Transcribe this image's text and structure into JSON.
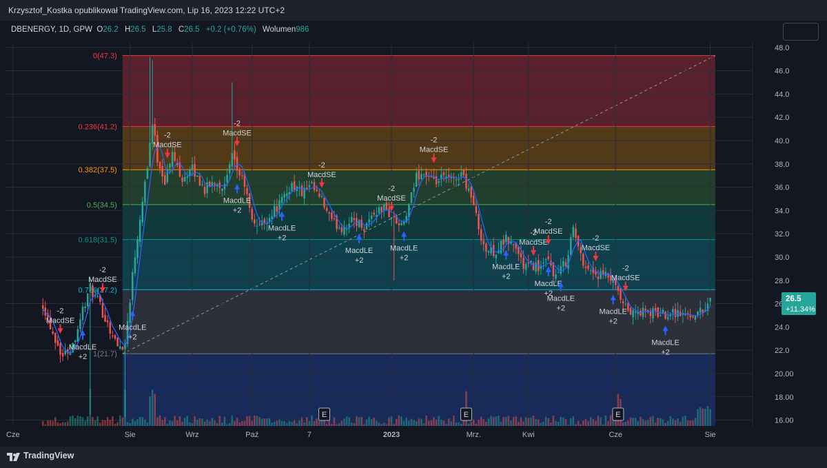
{
  "header": {
    "publisher": "Krzysztof_Kostka opublikował TradingView.com, Lip 16, 2023 12:22 UTC+2"
  },
  "legend": {
    "symbol": "DBENERGY, 1D, GPW",
    "open_label": "O",
    "open_value": "26.2",
    "high_label": "H",
    "high_value": "26.5",
    "low_label": "L",
    "low_value": "25.8",
    "close_label": "C",
    "close_value": "26.5",
    "change": "+0.2 (+0.76%)",
    "volume_label": "Wolumen",
    "volume_value": "986"
  },
  "price_tag": {
    "price": "26.5",
    "change": "+11.34%"
  },
  "footer": {
    "brand": "TradingView"
  },
  "colors": {
    "up": "#26a69a",
    "down": "#ef5350",
    "ma": "#2962ff",
    "buy_arrow": "#2962ff",
    "sell_arrow": "#f23645",
    "price_tag": "#26a69a"
  },
  "chart_data": {
    "type": "candlestick",
    "ylim": [
      15.5,
      48.4
    ],
    "y_ticks": [
      "48.0",
      "46.0",
      "44.0",
      "42.0",
      "40.0",
      "38.0",
      "36.0",
      "34.0",
      "32.0",
      "30.0",
      "28.0",
      "26.0",
      "24.0",
      "22.0",
      "20.00",
      "18.00",
      "16.00"
    ],
    "y_tick_values": [
      48,
      46,
      44,
      42,
      40,
      38,
      36,
      34,
      32,
      30,
      28,
      26,
      24,
      22,
      20,
      18,
      16
    ],
    "x_ticks": [
      "Cze",
      "Sie",
      "Wrz",
      "Paź",
      "7",
      "2023",
      "Mrz.",
      "Kwi",
      "Cze",
      "Sie"
    ],
    "x_tick_index": [
      -12,
      35,
      60,
      84,
      107,
      140,
      173,
      195,
      230,
      268
    ],
    "fib_levels": [
      {
        "label": "0(47.3)",
        "value": 47.3,
        "color": "#f23645"
      },
      {
        "label": "0.236(41.2)",
        "value": 41.2,
        "color": "#f23645"
      },
      {
        "label": "0.382(37.5)",
        "value": 37.5,
        "color": "#ff9800"
      },
      {
        "label": "0.5(34.5)",
        "value": 34.5,
        "color": "#4caf50"
      },
      {
        "label": "0.618(31.5)",
        "value": 31.5,
        "color": "#089981"
      },
      {
        "label": "0.786(27.2)",
        "value": 27.2,
        "color": "#00bcd4"
      },
      {
        "label": "1(21.7)",
        "value": 21.7,
        "color": "#787b86"
      }
    ],
    "fib_zone_colors": [
      "#f2364550",
      "#ff980045",
      "#4caf5045",
      "#08998145",
      "#00bcd440",
      "#787b8640"
    ],
    "fib_below_color": "#2962ff40",
    "fib_start_index": 32,
    "fib_end_index": 270,
    "trend_line": {
      "from": [
        32,
        21.7
      ],
      "to": [
        270,
        47.3
      ]
    },
    "signals": [
      {
        "i": 7,
        "type": "sell",
        "text": "MacdSE",
        "qty": "-2"
      },
      {
        "i": 16,
        "type": "buy",
        "text": "MacdLE",
        "qty": "+2"
      },
      {
        "i": 24,
        "type": "sell",
        "text": "MacdSE",
        "qty": "-2"
      },
      {
        "i": 36,
        "type": "buy",
        "text": "MacdLE",
        "qty": "+2"
      },
      {
        "i": 50,
        "type": "sell",
        "text": "MacdSE",
        "qty": "-2"
      },
      {
        "i": 78,
        "type": "sell",
        "text": "MacdSE",
        "qty": "-2"
      },
      {
        "i": 78,
        "type": "buy",
        "text": "MacdLE",
        "qty": "+2"
      },
      {
        "i": 96,
        "type": "buy",
        "text": "MacdLE",
        "qty": "+2"
      },
      {
        "i": 112,
        "type": "sell",
        "text": "MacdSE",
        "qty": "-2"
      },
      {
        "i": 127,
        "type": "buy",
        "text": "MacdLE",
        "qty": "+2"
      },
      {
        "i": 140,
        "type": "sell",
        "text": "MacdSE",
        "qty": "-2"
      },
      {
        "i": 145,
        "type": "buy",
        "text": "MacdLE",
        "qty": "+2"
      },
      {
        "i": 157,
        "type": "sell",
        "text": "MacdSE",
        "qty": "-2"
      },
      {
        "i": 186,
        "type": "buy",
        "text": "MacdLE",
        "qty": "+2"
      },
      {
        "i": 197,
        "type": "sell",
        "text": "MacdSE",
        "qty": "-2"
      },
      {
        "i": 203,
        "type": "sell",
        "text": "MacdSE",
        "qty": "-2"
      },
      {
        "i": 203,
        "type": "buy",
        "text": "MacdLE",
        "qty": "+2"
      },
      {
        "i": 208,
        "type": "buy",
        "text": "MacdLE",
        "qty": "+2"
      },
      {
        "i": 222,
        "type": "sell",
        "text": "MacdSE",
        "qty": "-2"
      },
      {
        "i": 229,
        "type": "buy",
        "text": "MacdLE",
        "qty": "+2"
      },
      {
        "i": 234,
        "type": "sell",
        "text": "MacdSE",
        "qty": "-2"
      },
      {
        "i": 250,
        "type": "buy",
        "text": "MacdLE",
        "qty": "+2"
      }
    ],
    "earnings_marks": [
      {
        "i": 113,
        "label": "E"
      },
      {
        "i": 170,
        "label": "E"
      },
      {
        "i": 231,
        "label": "E"
      }
    ],
    "anchors": [
      [
        0,
        26.0
      ],
      [
        4,
        23.5
      ],
      [
        8,
        21.5
      ],
      [
        12,
        22.5
      ],
      [
        16,
        25.5
      ],
      [
        19,
        27.3
      ],
      [
        22,
        26.2
      ],
      [
        26,
        24.3
      ],
      [
        30,
        22.3
      ],
      [
        33,
        22.5
      ],
      [
        36,
        28.5
      ],
      [
        39,
        33.5
      ],
      [
        42,
        38.0
      ],
      [
        44,
        41.5
      ],
      [
        46,
        38.5
      ],
      [
        49,
        36.5
      ],
      [
        52,
        38.8
      ],
      [
        56,
        36.8
      ],
      [
        60,
        37.5
      ],
      [
        65,
        35.8
      ],
      [
        69,
        36.5
      ],
      [
        73,
        36.0
      ],
      [
        76,
        38.5
      ],
      [
        78,
        37.5
      ],
      [
        81,
        36.2
      ],
      [
        84,
        33.0
      ],
      [
        88,
        32.8
      ],
      [
        92,
        33.8
      ],
      [
        96,
        34.8
      ],
      [
        100,
        36.3
      ],
      [
        104,
        35.5
      ],
      [
        108,
        36.0
      ],
      [
        112,
        34.8
      ],
      [
        116,
        33.0
      ],
      [
        120,
        32.5
      ],
      [
        125,
        33.2
      ],
      [
        129,
        32.6
      ],
      [
        133,
        33.8
      ],
      [
        137,
        34.2
      ],
      [
        140,
        33.5
      ],
      [
        144,
        32.5
      ],
      [
        147,
        34.2
      ],
      [
        150,
        37.0
      ],
      [
        153,
        37.2
      ],
      [
        157,
        36.3
      ],
      [
        161,
        36.8
      ],
      [
        165,
        36.5
      ],
      [
        168,
        37.3
      ],
      [
        172,
        35.3
      ],
      [
        175,
        32.5
      ],
      [
        178,
        30.5
      ],
      [
        182,
        30.5
      ],
      [
        186,
        31.5
      ],
      [
        190,
        30.8
      ],
      [
        193,
        29.2
      ],
      [
        197,
        29.3
      ],
      [
        200,
        29.1
      ],
      [
        203,
        29.6
      ],
      [
        206,
        28.3
      ],
      [
        210,
        29.6
      ],
      [
        213,
        32.5
      ],
      [
        216,
        30.0
      ],
      [
        219,
        29.0
      ],
      [
        223,
        28.4
      ],
      [
        227,
        28.3
      ],
      [
        230,
        27.3
      ],
      [
        233,
        25.8
      ],
      [
        237,
        25.1
      ],
      [
        241,
        25.3
      ],
      [
        245,
        25.2
      ],
      [
        249,
        25.1
      ],
      [
        253,
        25.4
      ],
      [
        257,
        25.0
      ],
      [
        261,
        25.1
      ],
      [
        265,
        25.4
      ],
      [
        268,
        26.5
      ]
    ]
  }
}
